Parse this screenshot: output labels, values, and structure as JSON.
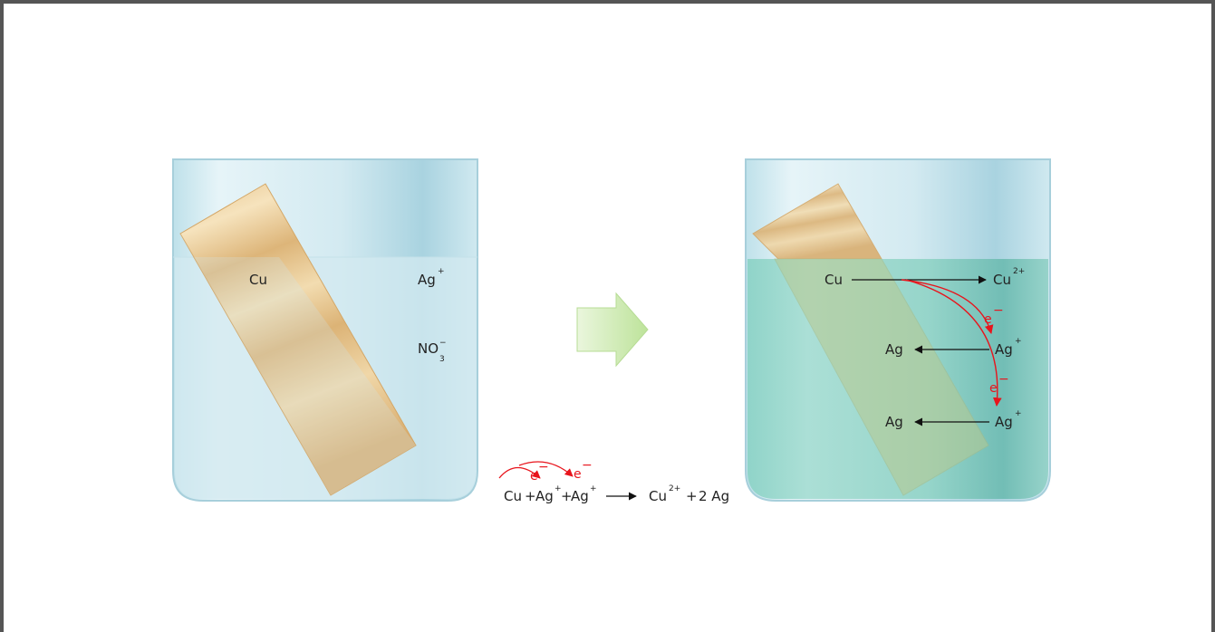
{
  "left_beaker": {
    "strip_label": "Cu",
    "ion1": {
      "base": "Ag",
      "sup": "+"
    },
    "ion2": {
      "base": "NO",
      "sub": "3",
      "sup": "−"
    }
  },
  "right_beaker": {
    "cu": "Cu",
    "cu_ion": {
      "base": "Cu",
      "sup": "2+"
    },
    "electron1": {
      "base": "e",
      "sup": "−"
    },
    "electron2": {
      "base": "e",
      "sup": "−"
    },
    "ag_ion1": {
      "base": "Ag",
      "sup": "+"
    },
    "ag_ion2": {
      "base": "Ag",
      "sup": "+"
    },
    "ag1": "Ag",
    "ag2": "Ag"
  },
  "equation": {
    "cu": "Cu",
    "plus1": "+",
    "ag1": "Ag",
    "ag1_sup": "+",
    "plus2": "+",
    "ag2": "Ag",
    "ag2_sup": "+",
    "cu2": "Cu",
    "cu2_sup": "2+",
    "plus3": "+",
    "product": "2 Ag",
    "e1": "e",
    "e1_sup": "−",
    "e2": "e",
    "e2_sup": "−"
  },
  "colors": {
    "solution_clear": "#d7ecf1",
    "solution_green": "#86cfc4",
    "copper": "#e5c18b",
    "electron_arrow": "#e8141c",
    "process_arrow": "#c3e7a3"
  }
}
